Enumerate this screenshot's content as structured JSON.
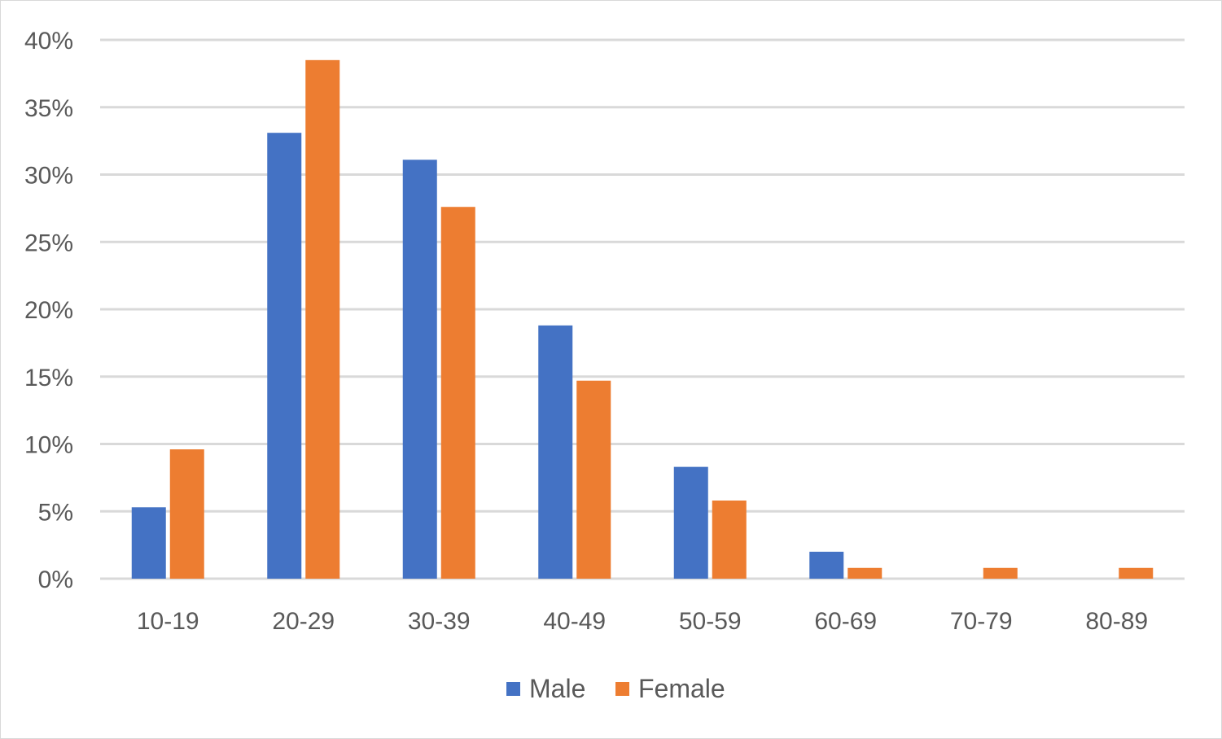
{
  "chart_data": {
    "type": "bar",
    "title": "",
    "xlabel": "",
    "ylabel": "",
    "categories": [
      "10-19",
      "20-29",
      "30-39",
      "40-49",
      "50-59",
      "60-69",
      "70-79",
      "80-89"
    ],
    "series": [
      {
        "name": "Male",
        "color": "#4472C4",
        "values": [
          5.3,
          33.1,
          31.1,
          18.8,
          8.3,
          2.0,
          0.0,
          0.0
        ]
      },
      {
        "name": "Female",
        "color": "#ED7D31",
        "values": [
          9.6,
          38.5,
          27.6,
          14.7,
          5.8,
          0.8,
          0.8,
          0.8
        ]
      }
    ],
    "ylim": [
      0,
      40
    ],
    "yticks": [
      0,
      5,
      10,
      15,
      20,
      25,
      30,
      35,
      40
    ],
    "ytick_labels": [
      "0%",
      "5%",
      "10%",
      "15%",
      "20%",
      "25%",
      "30%",
      "35%",
      "40%"
    ],
    "grid": true,
    "legend": "bottom-center"
  }
}
